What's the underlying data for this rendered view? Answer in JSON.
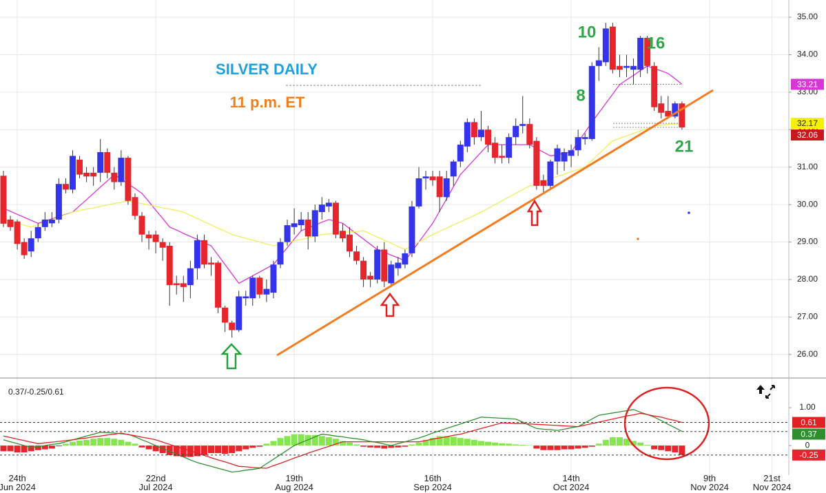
{
  "chart_data": [
    {
      "type": "candlestick",
      "title": "SILVER DAILY",
      "subtitle": "11 p.m. ET",
      "annotations": [
        "10",
        "16",
        "8",
        "21"
      ],
      "categories": [
        null,
        null,
        "24th Jun 2024",
        null,
        null,
        null,
        null,
        null,
        null,
        null,
        null,
        null,
        null,
        null,
        null,
        null,
        null,
        null,
        null,
        null,
        null,
        null,
        "22nd Jul 2024",
        null,
        null,
        null,
        null,
        null,
        null,
        null,
        null,
        null,
        null,
        null,
        null,
        null,
        null,
        null,
        null,
        null,
        null,
        null,
        "19th Aug 2024",
        null,
        null,
        null,
        null,
        null,
        null,
        null,
        null,
        null,
        null,
        null,
        null,
        null,
        null,
        null,
        null,
        null,
        null,
        null,
        "16th Sep 2024",
        null,
        null,
        null,
        null,
        null,
        null,
        null,
        null,
        null,
        null,
        null,
        null,
        null,
        null,
        null,
        null,
        null,
        null,
        null,
        "14th Oct 2024",
        null,
        null,
        null,
        null,
        null,
        null,
        null,
        null,
        null,
        null,
        null,
        null,
        null,
        null,
        null,
        null,
        null,
        null,
        null,
        "9th Nov 2024",
        null,
        null,
        null,
        null,
        null,
        null,
        null,
        null,
        "21st Nov 2024",
        null,
        null
      ],
      "open": [
        30.77,
        29.6,
        29.55,
        29.0,
        28.75,
        29.1,
        29.4,
        29.5,
        29.6,
        30.55,
        30.4,
        31.2,
        30.85,
        30.85,
        30.85,
        31.4,
        30.85,
        30.6,
        31.25,
        30.2,
        29.7,
        29.2,
        29.2,
        29.0,
        28.9,
        27.9,
        27.9,
        27.85,
        28.3,
        29.05,
        28.45,
        28.45,
        27.25,
        26.85,
        26.65,
        27.5,
        27.5,
        28.05,
        27.6,
        27.65,
        28.4,
        29.0,
        29.4,
        29.45,
        29.6,
        29.15,
        29.8,
        29.95,
        30.05,
        29.3,
        29.2,
        28.75,
        28.5,
        28.1,
        28.0,
        28.8,
        27.9,
        28.3,
        28.4,
        28.7,
        29.95,
        30.7,
        30.75,
        30.75,
        30.2,
        30.75,
        31.15,
        31.55,
        32.2,
        31.8,
        32.0,
        31.65,
        31.3,
        31.25,
        31.8,
        32.1,
        32.15,
        31.7,
        30.65,
        30.5,
        31.15,
        31.15,
        31.3,
        31.45,
        31.75,
        31.75,
        33.7,
        33.8,
        34.75,
        33.7,
        33.65,
        33.6,
        33.6,
        34.45,
        33.7,
        32.7,
        32.5,
        32.35,
        32.7,
        null,
        null,
        null,
        null,
        null,
        null,
        null,
        null,
        null,
        null,
        null,
        null,
        null,
        null,
        null
      ],
      "high": [
        30.9,
        29.7,
        29.6,
        29.1,
        29.3,
        29.5,
        29.8,
        29.8,
        30.7,
        30.7,
        31.45,
        31.3,
        31.0,
        31.0,
        31.75,
        31.5,
        31.0,
        31.45,
        31.3,
        30.3,
        29.8,
        29.3,
        29.3,
        29.1,
        29.0,
        28.1,
        28.1,
        28.5,
        29.2,
        29.2,
        28.6,
        28.5,
        27.3,
        26.9,
        27.7,
        27.7,
        28.1,
        28.1,
        28.0,
        28.5,
        29.1,
        29.6,
        29.9,
        29.8,
        29.8,
        30.0,
        30.2,
        30.15,
        30.1,
        29.5,
        29.4,
        28.9,
        28.6,
        28.2,
        28.9,
        29.0,
        28.5,
        28.6,
        28.8,
        30.1,
        31.0,
        30.9,
        30.9,
        30.9,
        30.9,
        31.2,
        31.7,
        32.3,
        32.3,
        32.5,
        32.1,
        31.8,
        31.6,
        31.9,
        32.3,
        32.9,
        32.3,
        31.8,
        30.8,
        31.2,
        31.6,
        31.5,
        31.6,
        32.0,
        31.9,
        33.8,
        34.2,
        34.85,
        34.85,
        34.0,
        34.0,
        33.9,
        34.5,
        34.5,
        33.8,
        32.9,
        32.9,
        32.75,
        32.75,
        null,
        null,
        null,
        null,
        null,
        null,
        null,
        null,
        null,
        null,
        null,
        null,
        null,
        null,
        null
      ],
      "low": [
        29.4,
        29.3,
        28.8,
        28.55,
        28.6,
        29.0,
        29.3,
        29.4,
        29.5,
        30.3,
        30.3,
        30.7,
        30.6,
        30.5,
        30.6,
        30.7,
        30.4,
        30.5,
        30.0,
        29.6,
        29.0,
        28.8,
        28.7,
        28.5,
        27.3,
        27.6,
        27.4,
        27.5,
        28.0,
        28.3,
        28.1,
        27.1,
        26.6,
        26.45,
        26.6,
        27.3,
        27.3,
        27.5,
        27.4,
        27.5,
        28.3,
        28.9,
        29.2,
        29.3,
        28.8,
        29.0,
        29.6,
        29.8,
        29.1,
        29.0,
        28.6,
        28.4,
        27.8,
        27.8,
        27.9,
        27.8,
        27.8,
        28.1,
        28.3,
        28.6,
        29.9,
        30.4,
        30.5,
        29.8,
        30.1,
        30.5,
        31.0,
        31.4,
        31.6,
        31.7,
        31.4,
        31.1,
        31.1,
        31.1,
        31.6,
        31.9,
        31.5,
        30.4,
        30.3,
        30.4,
        30.8,
        30.9,
        31.0,
        31.3,
        31.6,
        31.7,
        33.3,
        33.7,
        33.5,
        33.4,
        33.4,
        33.2,
        33.4,
        33.5,
        32.5,
        32.3,
        32.3,
        32.3,
        32.0,
        null,
        null,
        null,
        null,
        null,
        null,
        null,
        null,
        null,
        null,
        null,
        null,
        null,
        null,
        null
      ],
      "close": [
        29.49,
        29.4,
        28.95,
        28.65,
        29.1,
        29.4,
        29.6,
        29.6,
        30.55,
        30.4,
        31.3,
        30.8,
        30.75,
        30.75,
        31.4,
        30.85,
        30.6,
        31.25,
        30.1,
        29.7,
        29.2,
        29.1,
        29.0,
        28.85,
        27.85,
        27.85,
        27.8,
        28.3,
        29.05,
        28.4,
        28.4,
        27.25,
        26.85,
        26.65,
        27.55,
        27.55,
        28.05,
        27.6,
        27.75,
        28.4,
        29.0,
        29.45,
        29.5,
        29.6,
        29.15,
        29.85,
        30.0,
        30.05,
        29.2,
        29.1,
        28.75,
        28.5,
        28.0,
        28.0,
        28.8,
        27.95,
        28.4,
        28.45,
        28.7,
        29.95,
        30.7,
        30.75,
        30.65,
        30.2,
        30.7,
        31.15,
        31.6,
        32.2,
        31.8,
        32.0,
        31.6,
        31.25,
        31.25,
        31.8,
        32.1,
        32.15,
        31.6,
        30.5,
        30.5,
        31.15,
        31.5,
        31.4,
        31.45,
        31.8,
        31.8,
        33.7,
        33.85,
        34.7,
        33.6,
        33.6,
        33.7,
        33.7,
        34.45,
        33.7,
        32.6,
        32.45,
        32.35,
        32.7,
        32.06,
        null,
        null,
        null,
        null,
        null,
        null,
        null,
        null,
        null,
        null,
        null,
        null,
        null,
        null,
        null
      ],
      "up_color": "#3434ec",
      "down_color": "#e6262c",
      "series": [
        {
          "color": "#d637d6",
          "badge_color": "#d637d6",
          "values": [
            29.9,
            29.82,
            29.74,
            29.66,
            29.58,
            29.5,
            29.56,
            29.62,
            29.68,
            29.74,
            29.8,
            29.97,
            30.13,
            30.3,
            30.47,
            30.63,
            30.8,
            30.68,
            30.55,
            30.43,
            30.3,
            30.08,
            29.85,
            29.63,
            29.4,
            29.32,
            29.23,
            29.15,
            29.07,
            28.98,
            28.9,
            28.65,
            28.4,
            28.15,
            27.9,
            28.0,
            28.1,
            28.2,
            28.3,
            28.4,
            28.63,
            28.85,
            29.08,
            29.3,
            29.38,
            29.45,
            29.53,
            29.6,
            29.55,
            29.5,
            29.36,
            29.22,
            29.08,
            28.94,
            28.8,
            28.73,
            28.65,
            28.58,
            28.5,
            28.75,
            29.0,
            29.25,
            29.5,
            29.83,
            30.15,
            30.48,
            30.8,
            31.0,
            31.2,
            31.4,
            31.6,
            31.6,
            31.6,
            31.6,
            31.6,
            31.6,
            31.6,
            31.5,
            31.4,
            31.3,
            31.33,
            31.37,
            31.4,
            31.67,
            31.93,
            32.2,
            32.45,
            32.7,
            32.95,
            33.2,
            33.33,
            33.45,
            33.58,
            33.7,
            33.63,
            33.57,
            33.5,
            33.36,
            33.21,
            null,
            null,
            null,
            null,
            null,
            null,
            null,
            null,
            null,
            null,
            null,
            null,
            null,
            null,
            null
          ]
        },
        {
          "color": "#f0ee5c",
          "badge_color": "#f5f200",
          "values": [
            29.6,
            29.55,
            29.5,
            29.45,
            29.4,
            29.47,
            29.53,
            29.6,
            29.67,
            29.73,
            29.8,
            29.84,
            29.88,
            29.91,
            29.95,
            29.99,
            30.03,
            30.06,
            30.1,
            30.06,
            30.03,
            29.99,
            29.95,
            29.91,
            29.88,
            29.84,
            29.8,
            29.71,
            29.63,
            29.54,
            29.46,
            29.37,
            29.29,
            29.2,
            29.15,
            29.1,
            29.05,
            29.0,
            28.95,
            28.9,
            28.94,
            28.99,
            29.03,
            29.07,
            29.11,
            29.16,
            29.2,
            29.22,
            29.23,
            29.25,
            29.27,
            29.28,
            29.3,
            29.22,
            29.13,
            29.05,
            28.97,
            28.88,
            28.8,
            28.9,
            29.0,
            29.1,
            29.2,
            29.29,
            29.37,
            29.46,
            29.54,
            29.63,
            29.71,
            29.8,
            29.9,
            30.0,
            30.1,
            30.2,
            30.3,
            30.4,
            30.5,
            30.56,
            30.63,
            30.69,
            30.75,
            30.81,
            30.88,
            30.94,
            31.0,
            31.18,
            31.35,
            31.53,
            31.7,
            31.77,
            31.83,
            31.9,
            31.97,
            32.03,
            32.1,
            32.12,
            32.14,
            32.15,
            32.17,
            null,
            null,
            null,
            null,
            null,
            null,
            null,
            null,
            null,
            null,
            null,
            null,
            null,
            null,
            null
          ]
        }
      ],
      "ylim": [
        25.39,
        35.46
      ],
      "yticks": [
        {
          "value": 26,
          "label": "26.00"
        },
        {
          "value": 27,
          "label": "27.00"
        },
        {
          "value": 28,
          "label": "28.00"
        },
        {
          "value": 29,
          "label": "29.00"
        },
        {
          "value": 30,
          "label": "30.00"
        },
        {
          "value": 31,
          "label": "31.00"
        },
        {
          "value": 32,
          "label": "32.00"
        },
        {
          "value": 33,
          "label": "33.00"
        },
        {
          "value": 34,
          "label": "34.00"
        },
        {
          "value": 35,
          "label": "35.00"
        }
      ],
      "grid": true
    },
    {
      "type": "macd",
      "label": "0.37/-0.25/0.61",
      "histogram": [
        -0.15,
        -0.15,
        -0.18,
        -0.18,
        -0.15,
        -0.12,
        -0.1,
        -0.08,
        -0.02,
        0.05,
        0.1,
        0.13,
        0.15,
        0.18,
        0.2,
        0.2,
        0.18,
        0.15,
        0.1,
        0.05,
        -0.05,
        -0.1,
        -0.15,
        -0.2,
        -0.25,
        -0.28,
        -0.3,
        -0.3,
        -0.28,
        -0.25,
        -0.2,
        -0.2,
        -0.22,
        -0.2,
        -0.15,
        -0.1,
        -0.06,
        -0.03,
        0.05,
        0.12,
        0.2,
        0.25,
        0.3,
        0.3,
        0.28,
        0.28,
        0.25,
        0.22,
        0.18,
        0.12,
        0.08,
        0.03,
        -0.03,
        -0.05,
        -0.06,
        -0.08,
        -0.06,
        -0.05,
        -0.03,
        0.03,
        0.08,
        0.15,
        0.2,
        0.25,
        0.25,
        0.23,
        0.2,
        0.18,
        0.15,
        0.12,
        0.1,
        0.08,
        0.06,
        0.05,
        0.03,
        0.02,
        0.01,
        -0.08,
        -0.12,
        -0.12,
        -0.12,
        -0.1,
        -0.1,
        -0.08,
        -0.06,
        -0.03,
        0.05,
        0.15,
        0.22,
        0.22,
        0.18,
        0.12,
        0.08,
        0.02,
        -0.1,
        -0.12,
        -0.15,
        -0.18,
        -0.25
      ],
      "positive_color": "#86e64e",
      "negative_color": "#e6262c",
      "series": [
        {
          "color": "#2f8f2f",
          "values": [
            0.15,
            0.1,
            0.05,
            0.0,
            -0.05,
            -0.03,
            0.0,
            0.03,
            0.05,
            0.1,
            0.15,
            0.2,
            0.25,
            0.3,
            0.35,
            0.34,
            0.33,
            0.31,
            0.3,
            0.23,
            0.15,
            0.08,
            0.0,
            -0.08,
            -0.15,
            -0.23,
            -0.3,
            -0.38,
            -0.45,
            -0.5,
            -0.55,
            -0.6,
            -0.65,
            -0.7,
            -0.68,
            -0.65,
            -0.63,
            -0.6,
            -0.48,
            -0.36,
            -0.24,
            -0.12,
            0.0,
            0.08,
            0.15,
            0.23,
            0.3,
            0.28,
            0.25,
            0.23,
            0.2,
            0.18,
            0.15,
            0.11,
            0.08,
            0.04,
            0.0,
            0.05,
            0.1,
            0.15,
            0.2,
            0.26,
            0.33,
            0.39,
            0.45,
            0.51,
            0.57,
            0.63,
            0.69,
            0.75,
            0.74,
            0.73,
            0.72,
            0.71,
            0.7,
            0.62,
            0.53,
            0.45,
            0.43,
            0.42,
            0.4,
            0.43,
            0.47,
            0.5,
            0.6,
            0.7,
            0.8,
            0.83,
            0.86,
            0.89,
            0.92,
            0.95,
            0.88,
            0.82,
            0.75,
            0.66,
            0.56,
            0.47,
            0.37
          ]
        },
        {
          "color": "#e02222",
          "values": [
            0.25,
            0.21,
            0.17,
            0.13,
            0.09,
            0.05,
            0.07,
            0.09,
            0.11,
            0.13,
            0.15,
            0.18,
            0.2,
            0.23,
            0.25,
            0.28,
            0.3,
            0.33,
            0.29,
            0.26,
            0.22,
            0.19,
            0.15,
            0.09,
            0.03,
            -0.03,
            -0.08,
            -0.14,
            -0.2,
            -0.26,
            -0.32,
            -0.38,
            -0.43,
            -0.49,
            -0.55,
            -0.56,
            -0.58,
            -0.59,
            -0.6,
            -0.53,
            -0.47,
            -0.4,
            -0.33,
            -0.27,
            -0.2,
            -0.14,
            -0.08,
            -0.02,
            0.04,
            0.1,
            0.1,
            0.1,
            0.1,
            0.1,
            0.1,
            0.1,
            0.1,
            0.1,
            0.1,
            0.1,
            0.1,
            0.13,
            0.17,
            0.2,
            0.23,
            0.27,
            0.3,
            0.35,
            0.4,
            0.45,
            0.5,
            0.55,
            0.6,
            0.59,
            0.58,
            0.58,
            0.57,
            0.56,
            0.55,
            0.54,
            0.53,
            0.52,
            0.51,
            0.5,
            0.54,
            0.58,
            0.62,
            0.66,
            0.7,
            0.74,
            0.78,
            0.81,
            0.85,
            0.82,
            0.78,
            0.75,
            0.7,
            0.66,
            0.61
          ]
        }
      ],
      "ylim": [
        -0.78,
        1.71
      ],
      "yticks": [
        0,
        {
          "value": 1,
          "label": "1.00"
        }
      ]
    }
  ]
}
